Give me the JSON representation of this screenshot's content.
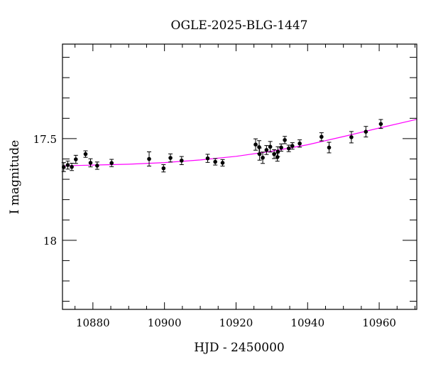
{
  "chart_data": {
    "type": "scatter",
    "title": "OGLE-2025-BLG-1447",
    "xlabel": "HJD - 2450000",
    "ylabel": "I magnitude",
    "xlim": [
      10871.5,
      10970.5
    ],
    "ylim": [
      18.34,
      17.035
    ],
    "y_reversed": true,
    "grid": false,
    "x_ticks": [
      10880,
      10900,
      10920,
      10940,
      10960
    ],
    "x_tick_labels": [
      "10880",
      "10900",
      "10920",
      "10940",
      "10960"
    ],
    "y_ticks": [
      17.5,
      18
    ],
    "y_tick_labels": [
      "17.5",
      "18"
    ],
    "point_color": "#000000",
    "model_color": "#ff00ff",
    "points": {
      "x": [
        10871.85,
        10872.98,
        10874.1,
        10875.23,
        10877.95,
        10879.34,
        10881.19,
        10885.23,
        10895.71,
        10899.74,
        10901.67,
        10904.79,
        10912.07,
        10914.19,
        10916.24,
        10925.47,
        10926.46,
        10926.58,
        10927.46,
        10928.51,
        10929.56,
        10930.64,
        10931.55,
        10931.69,
        10932.62,
        10933.62,
        10934.73,
        10935.73,
        10937.79,
        10943.88,
        10946.0,
        10952.23,
        10956.28,
        10960.46
      ],
      "y": [
        17.64,
        17.63,
        17.639,
        17.602,
        17.576,
        17.619,
        17.633,
        17.62,
        17.6,
        17.646,
        17.595,
        17.608,
        17.597,
        17.614,
        17.619,
        17.529,
        17.542,
        17.576,
        17.594,
        17.556,
        17.54,
        17.576,
        17.591,
        17.564,
        17.544,
        17.507,
        17.548,
        17.536,
        17.524,
        17.491,
        17.544,
        17.493,
        17.466,
        17.428
      ],
      "err": [
        0.022,
        0.02,
        0.018,
        0.02,
        0.016,
        0.02,
        0.018,
        0.018,
        0.035,
        0.018,
        0.02,
        0.02,
        0.02,
        0.016,
        0.016,
        0.028,
        0.032,
        0.03,
        0.028,
        0.022,
        0.026,
        0.022,
        0.02,
        0.024,
        0.018,
        0.018,
        0.016,
        0.016,
        0.018,
        0.02,
        0.026,
        0.028,
        0.026,
        0.022
      ]
    },
    "model": {
      "x": [
        10871.5,
        10880,
        10890,
        10900,
        10910,
        10920,
        10930,
        10940,
        10950,
        10960,
        10970.5
      ],
      "y": [
        17.634,
        17.63,
        17.626,
        17.618,
        17.605,
        17.587,
        17.562,
        17.53,
        17.49,
        17.448,
        17.405
      ]
    }
  }
}
